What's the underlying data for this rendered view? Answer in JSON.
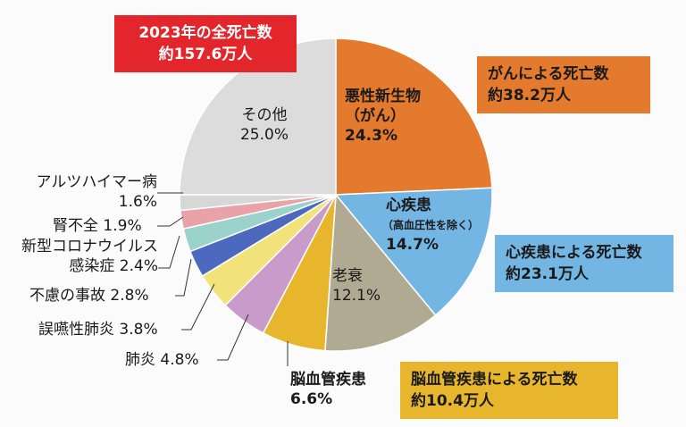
{
  "summary": {
    "total": {
      "line1": "2023年の全死亡数",
      "line2": "約157.6万人",
      "color": "#e2262b"
    },
    "cancer": {
      "line1": "がんによる死亡数",
      "line2": "約38.2万人",
      "color": "#e37a2e"
    },
    "heart": {
      "line1": "心疾患による死亡数",
      "line2": "約23.1万人",
      "color": "#74b6e3"
    },
    "brain": {
      "line1": "脳血管疾患による死亡数",
      "line2": "約10.4万人",
      "color": "#e8b62d"
    }
  },
  "chart_data": {
    "type": "pie",
    "start": "12 o'clock, clockwise",
    "slices": [
      {
        "name": "悪性新生物",
        "sub": "（がん）",
        "value": 24.3,
        "pct": "24.3%",
        "color": "#e37a2e"
      },
      {
        "name": "心疾患",
        "sub": "（高血圧性を除く）",
        "value": 14.7,
        "pct": "14.7%",
        "color": "#74b6e3"
      },
      {
        "name": "老衰",
        "sub": "",
        "value": 12.1,
        "pct": "12.1%",
        "color": "#b0aa92"
      },
      {
        "name": "脳血管疾患",
        "sub": "",
        "value": 6.6,
        "pct": "6.6%",
        "color": "#e8b62d"
      },
      {
        "name": "肺炎",
        "sub": "",
        "value": 4.8,
        "pct": "4.8%",
        "color": "#c99bcb"
      },
      {
        "name": "誤嚥性肺炎",
        "sub": "",
        "value": 3.8,
        "pct": "3.8%",
        "color": "#f2e27a"
      },
      {
        "name": "不慮の事故",
        "sub": "",
        "value": 2.8,
        "pct": "2.8%",
        "color": "#4d68bf"
      },
      {
        "name": "新型コロナウイルス感染症",
        "line1": "新型コロナウイルス",
        "line2": "感染症",
        "sub": "",
        "value": 2.4,
        "pct": "2.4%",
        "color": "#9bd3cc"
      },
      {
        "name": "腎不全",
        "sub": "",
        "value": 1.9,
        "pct": "1.9%",
        "color": "#e9a3a8"
      },
      {
        "name": "アルツハイマー病",
        "sub": "",
        "value": 1.6,
        "pct": "1.6%",
        "color": "#d7d7d7"
      },
      {
        "name": "その他",
        "sub": "",
        "value": 25.0,
        "pct": "25.0%",
        "color": "#dcdcdc"
      }
    ]
  }
}
